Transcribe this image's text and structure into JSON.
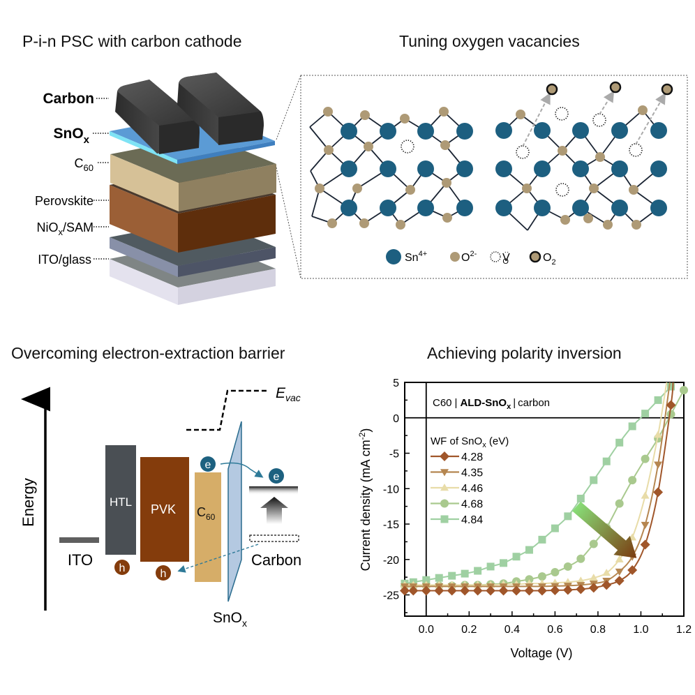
{
  "panels": {
    "top_left": {
      "title": "P-i-n PSC with carbon cathode",
      "layers": [
        {
          "label": "Carbon",
          "bold": true
        },
        {
          "label": "SnO",
          "sub": "x",
          "bold": true
        },
        {
          "label": "C",
          "sub": "60",
          "bold": false
        },
        {
          "label": "Perovskite",
          "bold": false
        },
        {
          "label": "NiO",
          "sub": "x",
          "after": "/SAM",
          "bold": false
        },
        {
          "label": "ITO/glass",
          "bold": false
        }
      ],
      "colors": {
        "carbon": "#3a3a3a",
        "snox": "#5b9bd5",
        "snox_edge": "#7fe3f5",
        "c60_top": "#6b6b55",
        "c60_front": "#8f8060",
        "c60_side": "#d6c197",
        "perovskite_top": "#4a3a2e",
        "perovskite_front": "#5e2e0c",
        "perovskite_side": "#9b5f36",
        "niox_top": "#505a60",
        "niox_front": "#4d5466",
        "niox_side": "#8890a8",
        "ito_top": "#7f8585",
        "ito_front": "#d4d2e0",
        "ito_side": "#e4e2ee"
      }
    },
    "top_right": {
      "title": "Tuning oxygen vacancies",
      "legend": [
        {
          "symbol": "sn-ion",
          "label": "Sn",
          "sup": "4+"
        },
        {
          "symbol": "o-ion",
          "label": "O",
          "sup": "2-"
        },
        {
          "symbol": "vacancy",
          "label": "V",
          "sub": "O",
          "sup": "··"
        },
        {
          "symbol": "o2-molecule",
          "label": "O",
          "sub": "2"
        }
      ],
      "colors": {
        "sn": "#1d5f80",
        "o": "#ae9a76",
        "bond": "#1a2433",
        "arrow": "#aaaaaa"
      }
    },
    "bottom_left": {
      "title": "Overcoming electron-extraction barrier",
      "axis_label": "Energy",
      "evac_label": "E",
      "evac_sub": "vac",
      "blocks": [
        {
          "label": "ITO",
          "color": "#5f5f5f"
        },
        {
          "label": "HTL",
          "color": "#4a4f54"
        },
        {
          "label": "PVK",
          "color": "#843c0c"
        },
        {
          "label": "C",
          "sub": "60",
          "color": "#d6ad68"
        },
        {
          "label": "SnO",
          "sub": "x",
          "color": "#a7c0dc"
        },
        {
          "label": "Carbon",
          "color": "#222222"
        }
      ],
      "carriers": {
        "electron": "e",
        "hole": "h",
        "electron_color": "#1d6180",
        "hole_color": "#843c0c"
      }
    },
    "bottom_right": {
      "title": "Achieving polarity inversion"
    }
  },
  "chart_data": {
    "type": "line",
    "title": "Achieving polarity inversion",
    "xlabel": "Voltage (V)",
    "ylabel": "Current density (mA cm",
    "ylabel_sup": "-2",
    "ylabel_end": ")",
    "xlim": [
      -0.1,
      1.2
    ],
    "ylim": [
      -28,
      5
    ],
    "xticks": [
      0.0,
      0.2,
      0.4,
      0.6,
      0.8,
      1.0,
      1.2
    ],
    "xtick_labels": [
      "0.0",
      "0.2",
      "0.4",
      "0.6",
      "0.8",
      "1.0",
      "1.2"
    ],
    "yticks": [
      5,
      0,
      -5,
      -10,
      -15,
      -20,
      -25
    ],
    "ytick_labels": [
      "5",
      "0",
      "-5",
      "-10",
      "-15",
      "-20",
      "-25"
    ],
    "grid": false,
    "reference_lines": {
      "x": 0,
      "y": 0
    },
    "annotation": {
      "pre": "C60",
      "bold": "ALD-SnO",
      "bold_sub": "x",
      "post": "carbon"
    },
    "legend_title": "WF of SnO",
    "legend_title_sub": "x",
    "legend_title_end": " (eV)",
    "legend_position": "upper-left",
    "trend_arrow": {
      "from": [
        0.7,
        -12.5
      ],
      "to": [
        0.98,
        -19.8
      ],
      "color_start": "#88dd77",
      "color_end": "#7a3a10"
    },
    "x": [
      -0.1,
      -0.06,
      0.0,
      0.06,
      0.12,
      0.18,
      0.24,
      0.3,
      0.36,
      0.42,
      0.48,
      0.54,
      0.6,
      0.66,
      0.72,
      0.78,
      0.84,
      0.9,
      0.96,
      1.02,
      1.08,
      1.14,
      1.2
    ],
    "series": [
      {
        "name": "4.28",
        "marker": "diamond",
        "color": "#a0562a",
        "values": [
          -24.4,
          -24.4,
          -24.4,
          -24.4,
          -24.4,
          -24.4,
          -24.4,
          -24.4,
          -24.4,
          -24.4,
          -24.4,
          -24.4,
          -24.35,
          -24.3,
          -24.2,
          -24.0,
          -23.6,
          -23.0,
          -21.5,
          -17.9,
          -10.5,
          1.8,
          null
        ],
        "tail": [
          [
            1.15,
            5.0
          ]
        ]
      },
      {
        "name": "4.35",
        "marker": "triangle-down",
        "color": "#b58650",
        "values": [
          -23.8,
          -23.8,
          -23.8,
          -23.8,
          -23.8,
          -23.8,
          -23.8,
          -23.8,
          -23.8,
          -23.8,
          -23.8,
          -23.8,
          -23.75,
          -23.7,
          -23.6,
          -23.4,
          -23.0,
          -21.7,
          -19.6,
          -15.1,
          -6.6,
          null,
          null
        ],
        "tail": [
          [
            1.135,
            5.0
          ]
        ]
      },
      {
        "name": "4.46",
        "marker": "triangle-up",
        "color": "#e8dca8",
        "values": [
          -23.6,
          -23.6,
          -23.6,
          -23.6,
          -23.6,
          -23.6,
          -23.6,
          -23.6,
          -23.5,
          -23.5,
          -23.4,
          -23.4,
          -23.3,
          -23.2,
          -23.0,
          -22.6,
          -21.9,
          -20.0,
          -16.9,
          -11.0,
          -2.4,
          null,
          null
        ],
        "tail": [
          [
            1.12,
            5.0
          ]
        ]
      },
      {
        "name": "4.68",
        "marker": "circle",
        "color": "#a9c98e",
        "values": [
          -23.75,
          -23.75,
          -23.7,
          -23.7,
          -23.7,
          -23.6,
          -23.6,
          -23.5,
          -23.4,
          -23.1,
          -22.8,
          -22.4,
          -21.8,
          -21.0,
          -19.9,
          -17.8,
          -15.5,
          -12.1,
          -8.8,
          -5.8,
          -2.9,
          0.5,
          3.9
        ]
      },
      {
        "name": "4.84",
        "marker": "square",
        "color": "#9fd0a2",
        "values": [
          -23.4,
          -23.2,
          -22.9,
          -22.6,
          -22.3,
          -22.0,
          -21.6,
          -21.0,
          -20.5,
          -19.6,
          -18.65,
          -17.2,
          -15.6,
          -13.9,
          -11.4,
          -8.8,
          -6.15,
          -3.5,
          -1.2,
          0.6,
          2.5,
          4.4,
          null
        ]
      }
    ]
  }
}
